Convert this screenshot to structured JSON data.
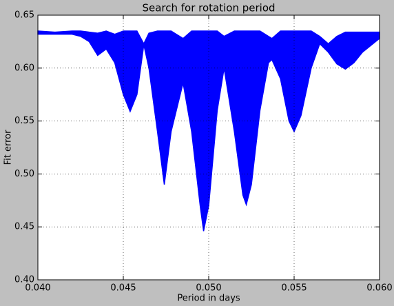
{
  "chart_data": {
    "type": "range-area",
    "title": "Search for rotation period",
    "x_label": "Period in days",
    "y_label": "Fit error",
    "color": "#0000ff",
    "grid": true,
    "x": [
      0.04,
      0.041,
      0.042,
      0.0425,
      0.043,
      0.0435,
      0.044,
      0.0445,
      0.045,
      0.0454,
      0.0458,
      0.0462,
      0.0465,
      0.047,
      0.0474,
      0.0478,
      0.0485,
      0.049,
      0.0495,
      0.0497,
      0.05,
      0.0505,
      0.0509,
      0.0515,
      0.052,
      0.0522,
      0.0525,
      0.053,
      0.0535,
      0.0537,
      0.0542,
      0.0547,
      0.055,
      0.0554,
      0.056,
      0.0565,
      0.057,
      0.0575,
      0.058,
      0.0585,
      0.059,
      0.06
    ],
    "upper": [
      0.635,
      0.634,
      0.635,
      0.635,
      0.634,
      0.633,
      0.635,
      0.632,
      0.635,
      0.635,
      0.635,
      0.623,
      0.633,
      0.635,
      0.635,
      0.635,
      0.628,
      0.635,
      0.635,
      0.635,
      0.635,
      0.635,
      0.63,
      0.635,
      0.635,
      0.635,
      0.635,
      0.635,
      0.63,
      0.628,
      0.635,
      0.635,
      0.635,
      0.635,
      0.635,
      0.63,
      0.623,
      0.63,
      0.634,
      0.634,
      0.634,
      0.634
    ],
    "lower": [
      0.632,
      0.632,
      0.632,
      0.63,
      0.625,
      0.612,
      0.618,
      0.605,
      0.575,
      0.559,
      0.575,
      0.622,
      0.6,
      0.54,
      0.49,
      0.54,
      0.586,
      0.54,
      0.47,
      0.446,
      0.47,
      0.56,
      0.6,
      0.54,
      0.48,
      0.471,
      0.49,
      0.56,
      0.605,
      0.608,
      0.59,
      0.55,
      0.54,
      0.555,
      0.6,
      0.623,
      0.615,
      0.604,
      0.599,
      0.605,
      0.615,
      0.628
    ],
    "xlim": [
      0.04,
      0.06
    ],
    "xticks": [
      {
        "value": 0.04,
        "label": "0.040"
      },
      {
        "value": 0.045,
        "label": "0.045"
      },
      {
        "value": 0.05,
        "label": "0.050"
      },
      {
        "value": 0.055,
        "label": "0.055"
      },
      {
        "value": 0.06,
        "label": "0.060"
      }
    ],
    "ylim": [
      0.4,
      0.65
    ],
    "yticks": [
      {
        "value": 0.4,
        "label": "0.40"
      },
      {
        "value": 0.45,
        "label": "0.45"
      },
      {
        "value": 0.5,
        "label": "0.50"
      },
      {
        "value": 0.55,
        "label": "0.55"
      },
      {
        "value": 0.6,
        "label": "0.60"
      },
      {
        "value": 0.65,
        "label": "0.65"
      }
    ]
  }
}
